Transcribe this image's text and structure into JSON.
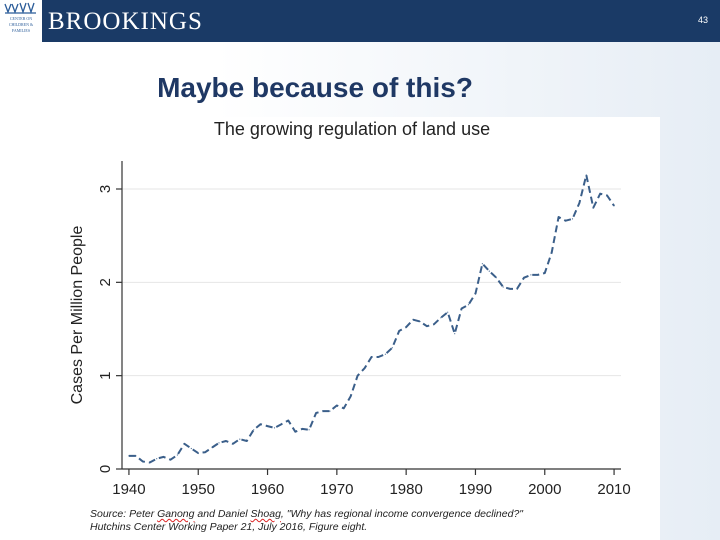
{
  "header": {
    "brand": "BROOKINGS",
    "logo_text": "CENTER ON CHILDREN & FAMILIES",
    "page_number": "43",
    "bar_color": "#1a3a66"
  },
  "slide": {
    "title": "Maybe because of this?"
  },
  "chart_data": {
    "type": "line",
    "title": "The growing regulation of land use",
    "xlabel": "",
    "ylabel": "Cases Per Million People",
    "xlim": [
      1939,
      2011
    ],
    "ylim": [
      0,
      3.3
    ],
    "xticks": [
      1940,
      1950,
      1960,
      1970,
      1980,
      1990,
      2000,
      2010
    ],
    "yticks": [
      0,
      1,
      2,
      3
    ],
    "line_style": "dashed",
    "line_color": "#3b5f8a",
    "series": [
      {
        "name": "Cases Per Million People",
        "x": [
          1940,
          1941,
          1942,
          1943,
          1944,
          1945,
          1946,
          1947,
          1948,
          1949,
          1950,
          1951,
          1952,
          1953,
          1954,
          1955,
          1956,
          1957,
          1958,
          1959,
          1960,
          1961,
          1962,
          1963,
          1964,
          1965,
          1966,
          1967,
          1968,
          1969,
          1970,
          1971,
          1972,
          1973,
          1974,
          1975,
          1976,
          1977,
          1978,
          1979,
          1980,
          1981,
          1982,
          1983,
          1984,
          1985,
          1986,
          1987,
          1988,
          1989,
          1990,
          1991,
          1992,
          1993,
          1994,
          1995,
          1996,
          1997,
          1998,
          1999,
          2000,
          2001,
          2002,
          2003,
          2004,
          2005,
          2006,
          2007,
          2008,
          2009,
          2010
        ],
        "values": [
          0.14,
          0.14,
          0.08,
          0.07,
          0.11,
          0.13,
          0.1,
          0.15,
          0.27,
          0.22,
          0.17,
          0.18,
          0.23,
          0.28,
          0.3,
          0.27,
          0.32,
          0.3,
          0.42,
          0.48,
          0.46,
          0.44,
          0.48,
          0.52,
          0.4,
          0.43,
          0.42,
          0.6,
          0.62,
          0.62,
          0.68,
          0.65,
          0.78,
          1.0,
          1.08,
          1.2,
          1.2,
          1.23,
          1.3,
          1.48,
          1.52,
          1.6,
          1.58,
          1.53,
          1.55,
          1.62,
          1.68,
          1.45,
          1.72,
          1.76,
          1.88,
          2.2,
          2.12,
          2.05,
          1.95,
          1.93,
          1.93,
          2.05,
          2.08,
          2.08,
          2.1,
          2.32,
          2.7,
          2.66,
          2.68,
          2.85,
          3.15,
          2.8,
          2.95,
          2.93,
          2.82
        ]
      }
    ],
    "source_line1_a": "Source: Peter ",
    "source_line1_b": "Ganong",
    "source_line1_c": " and Daniel ",
    "source_line1_d": "Shoag",
    "source_line1_e": ", \"Why has regional income convergence declined?\"",
    "source_line2": "Hutchins Center Working Paper 21, July 2016, Figure eight."
  }
}
